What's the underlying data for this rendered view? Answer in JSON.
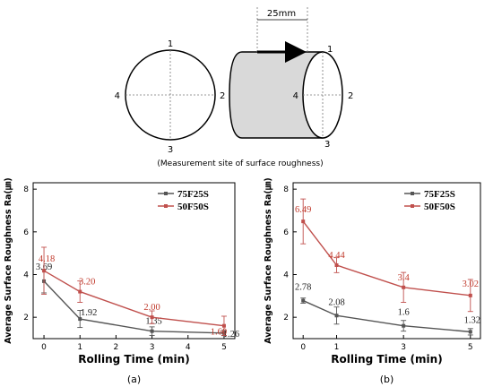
{
  "diagram": {
    "dimension_label": "25mm",
    "caption": "(Measurement site of surface roughness)",
    "circle_points": [
      "1",
      "2",
      "3",
      "4"
    ],
    "cylinder_points": [
      "1",
      "2",
      "3",
      "4"
    ]
  },
  "colors": {
    "series_75F25S": "#555555",
    "series_50F50S": "#c0504d"
  },
  "chart_data": [
    {
      "type": "line",
      "panel_label": "(a)",
      "xlabel": "Rolling Time (min)",
      "ylabel": "Average Surface Roughness Ra(㎛)",
      "xlim": [
        -0.3,
        5.3
      ],
      "ylim": [
        1.0,
        8.3
      ],
      "xticks": [
        0,
        1,
        2,
        3,
        4,
        5
      ],
      "yticks": [
        2,
        4,
        6,
        8
      ],
      "legend_position": "top-right",
      "series": [
        {
          "name": "75F25S",
          "x": [
            0,
            1,
            3,
            5
          ],
          "y": [
            3.69,
            1.92,
            1.35,
            1.26
          ],
          "labels": [
            "3.69",
            "1.92",
            "1.35",
            "1.26"
          ],
          "err": [
            0.55,
            0.4,
            0.2,
            0.12
          ]
        },
        {
          "name": "50F50S",
          "x": [
            0,
            1,
            3,
            5
          ],
          "y": [
            4.18,
            3.2,
            2.0,
            1.6
          ],
          "labels": [
            "4.18",
            "3.20",
            "2.00",
            "1.60"
          ],
          "err": [
            1.1,
            0.5,
            0.3,
            0.45
          ]
        }
      ]
    },
    {
      "type": "line",
      "panel_label": "(b)",
      "xlabel": "Rolling Time (min)",
      "ylabel": "Average Surface Roughness Ra(㎛)",
      "xlim": [
        -0.3,
        5.3
      ],
      "ylim": [
        1.0,
        8.3
      ],
      "xticks": [
        0,
        1,
        3,
        5
      ],
      "yticks": [
        2,
        4,
        6,
        8
      ],
      "legend_position": "top-right",
      "series": [
        {
          "name": "75F25S",
          "x": [
            0,
            1,
            3,
            5
          ],
          "y": [
            2.78,
            2.08,
            1.6,
            1.32
          ],
          "labels": [
            "2.78",
            "2.08",
            "1.6",
            "1.32"
          ],
          "err": [
            0.12,
            0.4,
            0.25,
            0.15
          ]
        },
        {
          "name": "50F50S",
          "x": [
            0,
            1,
            3,
            5
          ],
          "y": [
            6.49,
            4.44,
            3.4,
            3.02
          ],
          "labels": [
            "6.49",
            "4.44",
            "3.4",
            "3.02"
          ],
          "err": [
            1.05,
            0.35,
            0.7,
            0.75
          ]
        }
      ]
    }
  ]
}
